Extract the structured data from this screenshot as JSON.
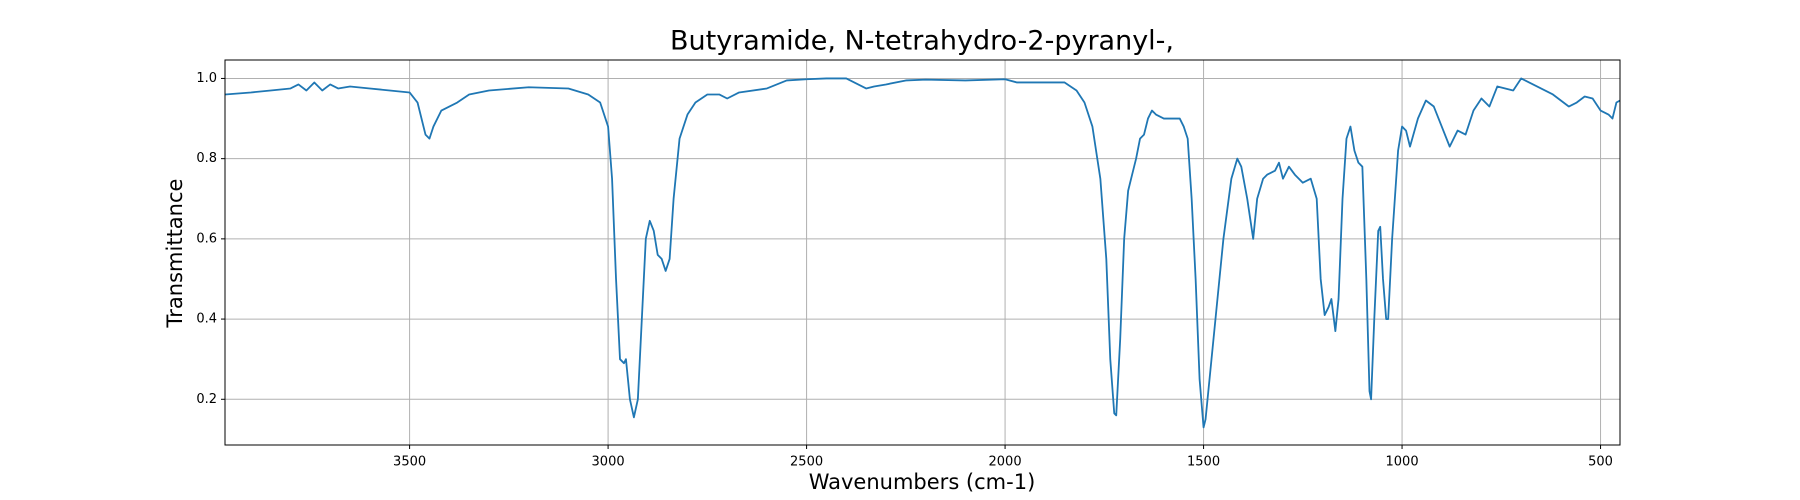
{
  "chart_data": {
    "type": "line",
    "title": "Butyramide, N-tetrahydro-2-pyranyl-,",
    "xlabel": "Wavenumbers (cm-1)",
    "ylabel": "Transmittance",
    "color": "#1f77b4",
    "grid": true,
    "xlim": [
      3965,
      451
    ],
    "ylim": [
      0.086,
      1.046
    ],
    "xticks": [
      3500,
      3000,
      2500,
      2000,
      1500,
      1000,
      500
    ],
    "yticks": [
      0.2,
      0.4,
      0.6,
      0.8,
      {
        "value": 1,
        "label": "1.0"
      }
    ],
    "x": [
      3965,
      3900,
      3850,
      3800,
      3780,
      3760,
      3740,
      3720,
      3700,
      3680,
      3650,
      3600,
      3550,
      3500,
      3480,
      3460,
      3450,
      3440,
      3420,
      3380,
      3350,
      3300,
      3200,
      3100,
      3050,
      3020,
      3000,
      2990,
      2980,
      2970,
      2960,
      2955,
      2945,
      2935,
      2925,
      2915,
      2905,
      2895,
      2885,
      2875,
      2865,
      2855,
      2845,
      2835,
      2820,
      2800,
      2780,
      2750,
      2720,
      2700,
      2670,
      2600,
      2550,
      2500,
      2450,
      2400,
      2380,
      2350,
      2330,
      2300,
      2250,
      2200,
      2100,
      2000,
      1970,
      1900,
      1850,
      1820,
      1800,
      1780,
      1760,
      1745,
      1735,
      1725,
      1720,
      1710,
      1700,
      1690,
      1680,
      1670,
      1660,
      1650,
      1640,
      1630,
      1620,
      1600,
      1580,
      1560,
      1550,
      1540,
      1530,
      1520,
      1510,
      1500,
      1495,
      1480,
      1470,
      1450,
      1430,
      1415,
      1405,
      1390,
      1375,
      1365,
      1350,
      1340,
      1320,
      1310,
      1300,
      1285,
      1270,
      1250,
      1230,
      1215,
      1205,
      1195,
      1185,
      1178,
      1168,
      1160,
      1150,
      1140,
      1130,
      1120,
      1110,
      1100,
      1090,
      1082,
      1078,
      1070,
      1060,
      1055,
      1048,
      1040,
      1035,
      1025,
      1010,
      1000,
      990,
      980,
      960,
      940,
      920,
      900,
      880,
      860,
      840,
      820,
      800,
      780,
      760,
      720,
      700,
      680,
      660,
      620,
      580,
      560,
      540,
      520,
      500,
      480,
      470,
      460,
      451
    ],
    "values": [
      0.96,
      0.965,
      0.97,
      0.975,
      0.985,
      0.97,
      0.99,
      0.97,
      0.985,
      0.975,
      0.98,
      0.975,
      0.97,
      0.965,
      0.94,
      0.86,
      0.85,
      0.88,
      0.92,
      0.94,
      0.96,
      0.97,
      0.978,
      0.975,
      0.96,
      0.94,
      0.88,
      0.75,
      0.5,
      0.3,
      0.29,
      0.3,
      0.2,
      0.155,
      0.2,
      0.4,
      0.6,
      0.645,
      0.62,
      0.56,
      0.55,
      0.52,
      0.55,
      0.7,
      0.85,
      0.91,
      0.94,
      0.96,
      0.96,
      0.95,
      0.965,
      0.975,
      0.995,
      0.998,
      1.0,
      1.0,
      0.99,
      0.975,
      0.98,
      0.985,
      0.995,
      0.997,
      0.995,
      0.998,
      0.99,
      0.99,
      0.99,
      0.97,
      0.94,
      0.88,
      0.75,
      0.55,
      0.3,
      0.165,
      0.16,
      0.35,
      0.6,
      0.72,
      0.76,
      0.8,
      0.85,
      0.86,
      0.9,
      0.92,
      0.91,
      0.9,
      0.9,
      0.9,
      0.88,
      0.85,
      0.7,
      0.5,
      0.25,
      0.13,
      0.15,
      0.3,
      0.4,
      0.6,
      0.75,
      0.8,
      0.78,
      0.7,
      0.6,
      0.7,
      0.75,
      0.76,
      0.77,
      0.79,
      0.75,
      0.78,
      0.76,
      0.74,
      0.75,
      0.7,
      0.5,
      0.41,
      0.43,
      0.45,
      0.37,
      0.45,
      0.7,
      0.85,
      0.88,
      0.82,
      0.79,
      0.78,
      0.5,
      0.22,
      0.2,
      0.4,
      0.62,
      0.63,
      0.5,
      0.4,
      0.4,
      0.6,
      0.82,
      0.88,
      0.87,
      0.83,
      0.9,
      0.945,
      0.93,
      0.88,
      0.83,
      0.87,
      0.86,
      0.92,
      0.95,
      0.93,
      0.98,
      0.97,
      1.0,
      0.99,
      0.98,
      0.96,
      0.93,
      0.94,
      0.955,
      0.95,
      0.92,
      0.91,
      0.9,
      0.94,
      0.945
    ]
  }
}
